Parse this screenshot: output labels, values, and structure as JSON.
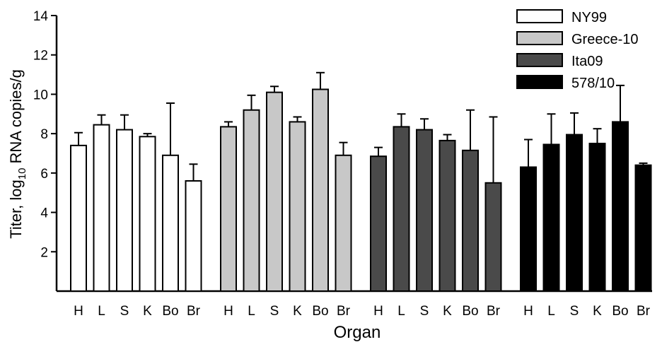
{
  "chart_data": {
    "type": "bar",
    "xlabel": "Organ",
    "ylabel_main": "Titer, log",
    "ylabel_sub": "10",
    "ylabel_tail": " RNA copies/g",
    "ylim": [
      0,
      14
    ],
    "yticks": [
      2,
      4,
      6,
      8,
      10,
      12,
      14
    ],
    "grid": false,
    "legend_position": "top-right",
    "categories": [
      "H",
      "L",
      "S",
      "K",
      "Bo",
      "Br"
    ],
    "series": [
      {
        "name": "NY99",
        "color": "#ffffff",
        "values": [
          7.4,
          8.45,
          8.2,
          7.85,
          6.9,
          5.6
        ],
        "errors": [
          0.65,
          0.5,
          0.75,
          0.15,
          2.65,
          0.85
        ]
      },
      {
        "name": "Greece-10",
        "color": "#c8c8c8",
        "values": [
          8.35,
          9.2,
          10.1,
          8.6,
          10.25,
          6.9
        ],
        "errors": [
          0.25,
          0.75,
          0.3,
          0.25,
          0.85,
          0.65
        ]
      },
      {
        "name": "Ita09",
        "color": "#4a4a4a",
        "values": [
          6.85,
          8.35,
          8.2,
          7.65,
          7.15,
          5.5
        ],
        "errors": [
          0.45,
          0.65,
          0.55,
          0.3,
          2.05,
          3.35
        ]
      },
      {
        "name": "578/10",
        "color": "#000000",
        "values": [
          6.3,
          7.45,
          7.95,
          7.5,
          8.6,
          6.4
        ],
        "errors": [
          1.4,
          1.55,
          1.1,
          0.75,
          1.85,
          0.1
        ]
      }
    ]
  }
}
